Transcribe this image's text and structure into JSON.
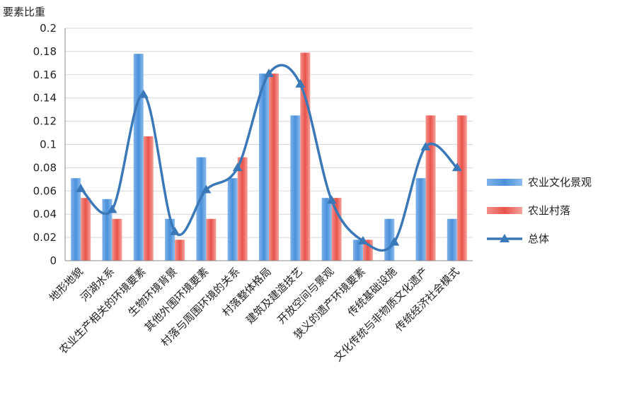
{
  "chart_data": {
    "type": "bar",
    "ylabel": "要素比重",
    "xlabel": "",
    "ylim": [
      0,
      0.2
    ],
    "yticks": [
      "0",
      "0.02",
      "0.04",
      "0.06",
      "0.08",
      "0.1",
      "0.12",
      "0.14",
      "0.16",
      "0.18",
      "0.2"
    ],
    "grid": true,
    "legend_position": "right",
    "categories": [
      "地形地貌",
      "河湖水系",
      "农业生产相关的环境要素",
      "生物环境背景",
      "其他外围环境要素",
      "村落与周围环境的关系",
      "村落整体格局",
      "建筑及建造技艺",
      "开放空间与景观",
      "狭义的遗产环境要素",
      "传统基础设施",
      "文化传统与非物质文化遗产",
      "传统经济社会模式"
    ],
    "series": [
      {
        "name": "农业文化景观",
        "kind": "bar",
        "color": "#4a90d9",
        "values": [
          0.071,
          0.053,
          0.178,
          0.036,
          0.089,
          0.071,
          0.161,
          0.125,
          0.054,
          0.018,
          0.036,
          0.071,
          0.036
        ]
      },
      {
        "name": "农业村落",
        "kind": "bar",
        "color": "#e8534a",
        "values": [
          0.054,
          0.036,
          0.107,
          0.018,
          0.036,
          0.089,
          0.161,
          0.179,
          0.054,
          0.018,
          0.0,
          0.125,
          0.125
        ]
      },
      {
        "name": "总体",
        "kind": "line",
        "color": "#3a78b8",
        "values": [
          0.062,
          0.044,
          0.143,
          0.025,
          0.061,
          0.08,
          0.161,
          0.152,
          0.052,
          0.017,
          0.016,
          0.098,
          0.08
        ]
      }
    ]
  }
}
